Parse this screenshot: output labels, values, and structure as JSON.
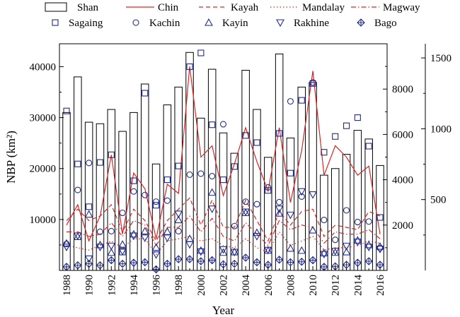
{
  "chart_data": {
    "type": "bar",
    "xlabel": "Year",
    "ylabel": "NBP (km²)",
    "x": [
      1988,
      1989,
      1990,
      1991,
      1992,
      1993,
      1994,
      1995,
      1996,
      1997,
      1998,
      1999,
      2000,
      2001,
      2002,
      2003,
      2004,
      2005,
      2006,
      2007,
      2008,
      2009,
      2010,
      2011,
      2012,
      2013,
      2014,
      2015,
      2016
    ],
    "xticks": [
      "1988",
      "1990",
      "1992",
      "1994",
      "1996",
      "1998",
      "2000",
      "2002",
      "2004",
      "2006",
      "2008",
      "2010",
      "2012",
      "2014",
      "2016"
    ],
    "axes": {
      "left": {
        "ylim": [
          0,
          44500
        ],
        "ticks": [
          "10000",
          "20000",
          "30000",
          "40000"
        ]
      },
      "right_inner": {
        "ylim": [
          0,
          10000
        ],
        "ticks": [
          "2000",
          "4000",
          "6000",
          "8000"
        ]
      },
      "right_outer": {
        "ylim": [
          0,
          1600
        ],
        "ticks": [
          "500",
          "1000",
          "1500"
        ]
      }
    },
    "legend": {
      "placement": "top",
      "entries": [
        "Shan",
        "Chin",
        "Kayah",
        "Mandalay",
        "Magway",
        "Sagaing",
        "Kachin",
        "Kayin",
        "Rakhine",
        "Bago"
      ]
    },
    "series": [
      {
        "name": "Shan",
        "kind": "bar",
        "axis": "left",
        "values": [
          31000,
          38000,
          29100,
          28800,
          31600,
          27300,
          31000,
          36600,
          20900,
          32500,
          36000,
          42800,
          29900,
          39500,
          27000,
          23000,
          39300,
          31600,
          22200,
          42500,
          26000,
          36000,
          36900,
          18700,
          20000,
          22800,
          27500,
          25800,
          20600
        ]
      },
      {
        "name": "Chin",
        "kind": "line",
        "style": "solid",
        "axis": "right_inner",
        "values": [
          2000,
          2900,
          1300,
          2400,
          5100,
          1600,
          4300,
          3600,
          1400,
          3800,
          3400,
          9000,
          5000,
          5500,
          3300,
          4700,
          6300,
          4800,
          3500,
          6300,
          3000,
          5300,
          8800,
          4200,
          5500,
          5000,
          4200,
          4600,
          1600
        ]
      },
      {
        "name": "Kayah",
        "kind": "line",
        "style": "dashed",
        "axis": "right_inner",
        "values": [
          2200,
          2700,
          2200,
          2400,
          2900,
          1700,
          2700,
          2200,
          1300,
          2200,
          2700,
          3200,
          2000,
          3100,
          1900,
          1900,
          3100,
          2200,
          1300,
          2600,
          2000,
          2600,
          2700,
          1500,
          2000,
          1900,
          1800,
          2600,
          2400
        ]
      },
      {
        "name": "Mandalay",
        "kind": "line",
        "style": "dotted",
        "axis": "right_inner",
        "values": [
          1100,
          1000,
          900,
          1100,
          1300,
          1000,
          1400,
          1400,
          700,
          1300,
          1400,
          1500,
          1300,
          1400,
          1100,
          1000,
          1400,
          1000,
          800,
          1700,
          1100,
          1300,
          1500,
          900,
          1000,
          1000,
          1100,
          1300,
          1200
        ]
      },
      {
        "name": "Magway",
        "kind": "line",
        "style": "dashdot",
        "axis": "right_inner",
        "values": [
          1700,
          1700,
          1500,
          1600,
          2100,
          1500,
          2200,
          2000,
          1100,
          1900,
          1900,
          2400,
          1700,
          2300,
          1500,
          1300,
          2100,
          1600,
          1100,
          2200,
          1800,
          2000,
          1900,
          1200,
          1700,
          1600,
          1600,
          1800,
          1400
        ]
      },
      {
        "name": "Sagaing",
        "kind": "marker",
        "marker": "square",
        "axis": "left",
        "values": [
          31300,
          20900,
          12500,
          21200,
          22700,
          3600,
          17600,
          34800,
          12800,
          17800,
          20500,
          40000,
          42700,
          28600,
          17800,
          20400,
          26500,
          25100,
          15700,
          26900,
          19100,
          33400,
          36700,
          23200,
          26300,
          28400,
          30000,
          24400,
          10400
        ]
      },
      {
        "name": "Kachin",
        "kind": "marker",
        "marker": "circle",
        "axis": "left",
        "values": [
          5200,
          15800,
          21100,
          7600,
          7700,
          11300,
          15500,
          14800,
          13500,
          13700,
          7700,
          18800,
          19000,
          18500,
          28700,
          8700,
          13500,
          13000,
          16300,
          13400,
          33200,
          14500,
          36900,
          9900,
          6000,
          11800,
          9500,
          9600,
          4400
        ]
      },
      {
        "name": "Kayin",
        "kind": "marker",
        "marker": "triangle-up",
        "axis": "left",
        "values": [
          5300,
          6600,
          11000,
          5000,
          3500,
          5100,
          7100,
          7700,
          4500,
          7600,
          9900,
          6200,
          3900,
          15300,
          3500,
          3600,
          11300,
          7400,
          3900,
          11200,
          4300,
          3900,
          7900,
          3400,
          3500,
          3600,
          5900,
          5000,
          4700
        ]
      },
      {
        "name": "Rakhine",
        "kind": "marker",
        "marker": "triangle-down",
        "axis": "left",
        "values": [
          4600,
          6800,
          2300,
          4600,
          4800,
          3800,
          6800,
          6400,
          3100,
          6400,
          11100,
          5100,
          3700,
          12100,
          4100,
          3600,
          11500,
          6700,
          4000,
          12100,
          10900,
          15500,
          14900,
          3200,
          3800,
          4800,
          5600,
          4600,
          4200
        ]
      },
      {
        "name": "Bago",
        "kind": "marker",
        "marker": "diamond-plus",
        "axis": "left",
        "values": [
          700,
          1000,
          1300,
          1000,
          2000,
          1300,
          1500,
          1600,
          200,
          1300,
          2200,
          2200,
          1800,
          2000,
          1200,
          1300,
          2500,
          1600,
          1100,
          2100,
          1600,
          1700,
          2000,
          700,
          800,
          1100,
          1500,
          1800,
          1100
        ]
      }
    ]
  }
}
